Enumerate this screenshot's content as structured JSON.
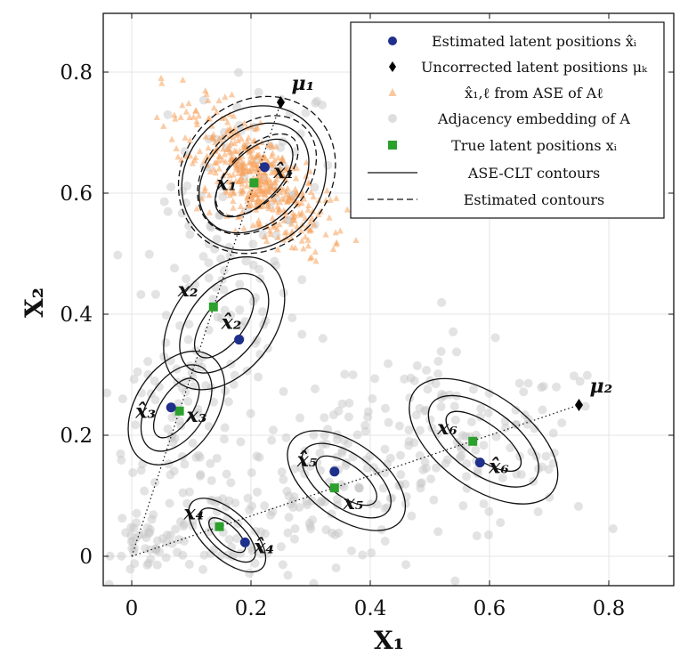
{
  "chart_data": {
    "type": "scatter",
    "xlabel": "X₁",
    "ylabel": "X₂",
    "xlim": [
      -0.05,
      0.9
    ],
    "ylim": [
      -0.05,
      0.9
    ],
    "xticks": [
      0,
      0.2,
      0.4,
      0.6,
      0.8
    ],
    "yticks": [
      0,
      0.2,
      0.4,
      0.6,
      0.8
    ],
    "xtick_labels": [
      "0",
      "0.2",
      "0.4",
      "0.6",
      "0.8"
    ],
    "ytick_labels": [
      "0",
      "0.2",
      "0.4",
      "0.6",
      "0.8"
    ],
    "grid": true,
    "legend_position": "top-right",
    "colors": {
      "estimated": "#1f2f8c",
      "uncorrected": "#000000",
      "ase_ell": "#f7a35c",
      "adjacency": "#c8c8c8",
      "true": "#2ca02c"
    },
    "legend": [
      {
        "key": "estimated",
        "label": "Estimated latent positions x̂ᵢ"
      },
      {
        "key": "uncorrected",
        "label": "Uncorrected latent positions μₖ"
      },
      {
        "key": "ase_ell",
        "label": "x̂₁,ℓ from ASE of Aℓ"
      },
      {
        "key": "adjacency",
        "label": "Adjacency embedding of A"
      },
      {
        "key": "true",
        "label": "True latent positions xᵢ"
      },
      {
        "key": "clt",
        "label": "ASE-CLT contours"
      },
      {
        "key": "est_contours",
        "label": "Estimated contours"
      }
    ],
    "mu": [
      {
        "label": "μ₁",
        "x": 0.25,
        "y": 0.75
      },
      {
        "label": "μ₂",
        "x": 0.75,
        "y": 0.25
      }
    ],
    "true_positions": [
      {
        "label": "x₁",
        "x": 0.205,
        "y": 0.617
      },
      {
        "label": "x₂",
        "x": 0.137,
        "y": 0.412
      },
      {
        "label": "x₃",
        "x": 0.08,
        "y": 0.24
      },
      {
        "label": "x₄",
        "x": 0.147,
        "y": 0.049
      },
      {
        "label": "x₅",
        "x": 0.34,
        "y": 0.113
      },
      {
        "label": "x₆",
        "x": 0.572,
        "y": 0.19
      }
    ],
    "estimated_positions": [
      {
        "label": "x̂₁",
        "x": 0.223,
        "y": 0.643
      },
      {
        "label": "x̂₂",
        "x": 0.18,
        "y": 0.358
      },
      {
        "label": "x̂₃",
        "x": 0.066,
        "y": 0.246
      },
      {
        "label": "x̂₄",
        "x": 0.19,
        "y": 0.023
      },
      {
        "label": "x̂₅",
        "x": 0.34,
        "y": 0.14
      },
      {
        "label": "x̂₆",
        "x": 0.584,
        "y": 0.155
      }
    ]
  }
}
